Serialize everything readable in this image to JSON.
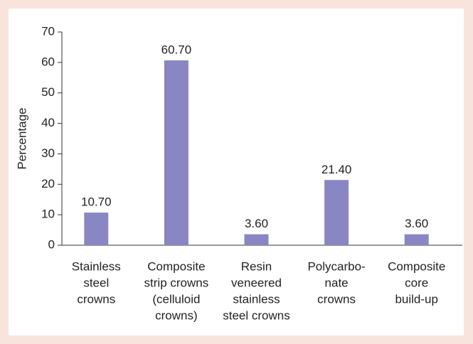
{
  "chart_data": {
    "type": "bar",
    "y_label": "Percentage",
    "categories": [
      [
        "Stainless",
        "steel",
        "crowns"
      ],
      [
        "Composite",
        "strip crowns",
        "(celluloid",
        "crowns)"
      ],
      [
        "Resin",
        "veneered",
        "stainless",
        "steel crowns"
      ],
      [
        "Polycarbo-",
        "nate",
        "crowns"
      ],
      [
        "Composite",
        "core",
        "build-up"
      ]
    ],
    "values": [
      10.7,
      60.7,
      3.6,
      21.4,
      3.6
    ],
    "value_labels": [
      "10.70",
      "60.70",
      "3.60",
      "21.40",
      "3.60"
    ],
    "color": "#8a86c4",
    "ylim": [
      0,
      70
    ],
    "yticks": [
      0,
      10,
      20,
      30,
      40,
      50,
      60,
      70
    ]
  }
}
